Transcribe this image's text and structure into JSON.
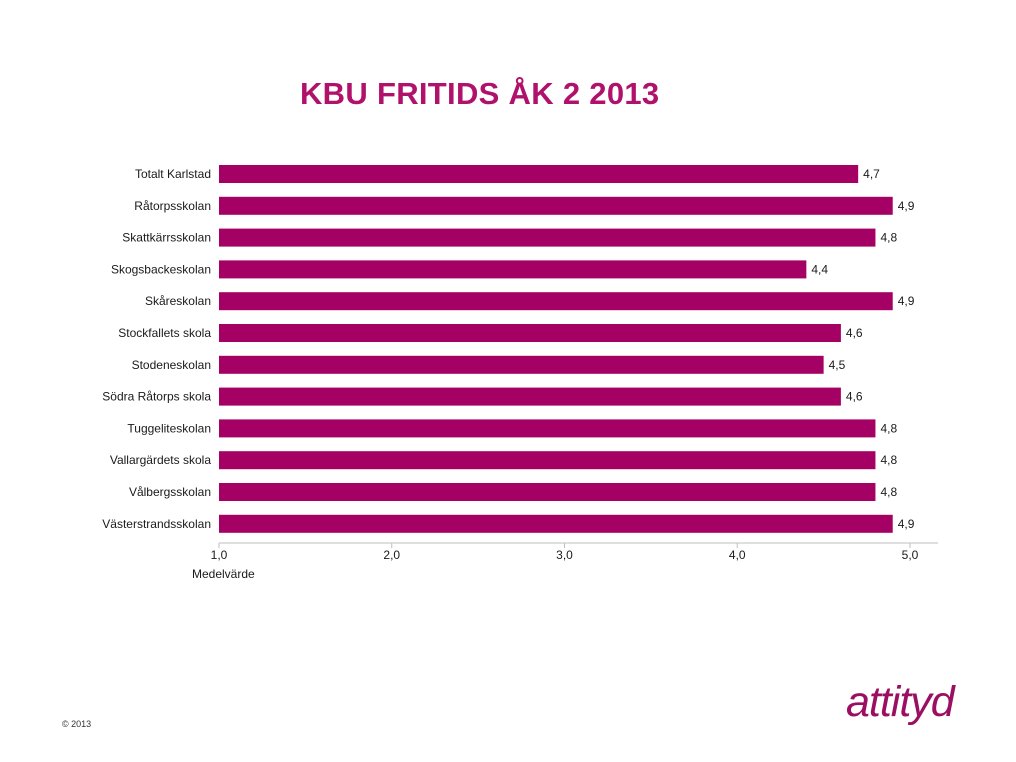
{
  "slide": {
    "title": "KBU FRITIDS ÅK 2 2013",
    "copyright": "© 2013",
    "logo_text": "attityd"
  },
  "colors": {
    "bar": "#A50064",
    "title": "#B0116A",
    "logo": "#9B0F62",
    "axis": "#BFBFBF",
    "text": "#1A1A1A"
  },
  "chart_data": {
    "type": "bar",
    "orientation": "horizontal",
    "title": "KBU FRITIDS ÅK 2 2013",
    "xlabel": "Medelvärde",
    "ylabel": "",
    "xlim": [
      1.0,
      5.0
    ],
    "grid": false,
    "categories": [
      "Totalt Karlstad",
      "Råtorpsskolan",
      "Skattkärrsskolan",
      "Skogsbackeskolan",
      "Skåreskolan",
      "Stockfallets skola",
      "Stodeneskolan",
      "Södra Råtorps skola",
      "Tuggeliteskolan",
      "Vallargärdets skola",
      "Vålbergsskolan",
      "Västerstrandsskolan"
    ],
    "values": [
      4.7,
      4.9,
      4.8,
      4.4,
      4.9,
      4.6,
      4.5,
      4.6,
      4.8,
      4.8,
      4.8,
      4.9
    ],
    "value_labels": [
      "4,7",
      "4,9",
      "4,8",
      "4,4",
      "4,9",
      "4,6",
      "4,5",
      "4,6",
      "4,8",
      "4,8",
      "4,8",
      "4,9"
    ],
    "x_ticks": [
      1,
      2,
      3,
      4,
      5
    ],
    "x_tick_labels": [
      "1,0",
      "2,0",
      "3,0",
      "4,0",
      "5,0"
    ]
  }
}
